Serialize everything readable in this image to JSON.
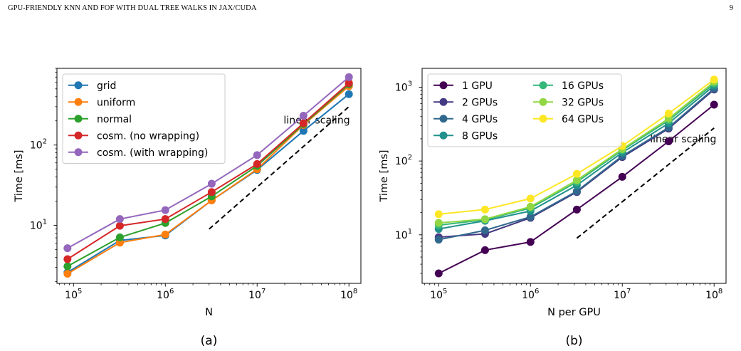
{
  "page": {
    "running_header": "GPU-FRIENDLY KNN AND FOF WITH DUAL TREE WALKS IN JAX/CUDA",
    "page_number": "9"
  },
  "chart_data": [
    {
      "type": "line",
      "panel_label": "(a)",
      "xlabel": "N",
      "ylabel": "Time [ms]",
      "xscale": "log",
      "yscale": "log",
      "xlim": [
        66000,
        135000000
      ],
      "ylim": [
        1.9,
        900
      ],
      "xticks": [
        100000,
        1000000,
        10000000,
        100000000
      ],
      "xtick_labels": [
        {
          "base": "10",
          "exp": "5"
        },
        {
          "base": "10",
          "exp": "6"
        },
        {
          "base": "10",
          "exp": "7"
        },
        {
          "base": "10",
          "exp": "8"
        }
      ],
      "yticks": [
        10,
        100
      ],
      "ytick_labels": [
        {
          "base": "10",
          "exp": "1"
        },
        {
          "base": "10",
          "exp": "2"
        }
      ],
      "legend_position": "upper-left",
      "legend_columns": 1,
      "grid": false,
      "x": [
        86000,
        320000,
        1000000,
        3200000,
        10000000,
        32000000,
        100000000
      ],
      "series": [
        {
          "name": "grid",
          "color": "#1f77b4",
          "values": [
            2.6,
            6.5,
            7.5,
            20.5,
            49,
            150,
            430
          ]
        },
        {
          "name": "uniform",
          "color": "#ff7f0e",
          "values": [
            2.5,
            6.1,
            7.7,
            20.5,
            50,
            178,
            540
          ]
        },
        {
          "name": "normal",
          "color": "#2ca02c",
          "values": [
            3.1,
            7.1,
            10.7,
            23,
            55,
            182,
            570
          ]
        },
        {
          "name": "cosm. (no wrapping)",
          "color": "#d62728",
          "values": [
            3.8,
            9.9,
            12,
            26,
            58,
            187,
            590
          ]
        },
        {
          "name": "cosm. (with wrapping)",
          "color": "#9467bd",
          "values": [
            5.2,
            12,
            15.5,
            33,
            75,
            232,
            700
          ]
        }
      ],
      "reference_line": {
        "label": "linear scaling",
        "x": [
          3000000,
          100000000
        ],
        "y": [
          9,
          300
        ],
        "style": "dashed"
      }
    },
    {
      "type": "line",
      "panel_label": "(b)",
      "xlabel": "N per GPU",
      "ylabel": "Time [ms]",
      "xscale": "log",
      "yscale": "log",
      "xlim": [
        66000,
        135000000
      ],
      "ylim": [
        2.2,
        1800
      ],
      "xticks": [
        100000,
        1000000,
        10000000,
        100000000
      ],
      "xtick_labels": [
        {
          "base": "10",
          "exp": "5"
        },
        {
          "base": "10",
          "exp": "6"
        },
        {
          "base": "10",
          "exp": "7"
        },
        {
          "base": "10",
          "exp": "8"
        }
      ],
      "yticks": [
        10,
        100,
        1000
      ],
      "ytick_labels": [
        {
          "base": "10",
          "exp": "1"
        },
        {
          "base": "10",
          "exp": "2"
        },
        {
          "base": "10",
          "exp": "3"
        }
      ],
      "legend_position": "upper-left",
      "legend_columns": 2,
      "grid": false,
      "x": [
        100000,
        320000,
        1000000,
        3200000,
        10000000,
        32000000,
        100000000
      ],
      "series": [
        {
          "name": "1 GPU",
          "color": "#440154",
          "values": [
            3,
            6.2,
            8,
            22,
            61,
            185,
            580
          ]
        },
        {
          "name": "2 GPUs",
          "color": "#443983",
          "values": [
            9.3,
            10.3,
            17,
            38,
            113,
            275,
            930
          ]
        },
        {
          "name": "4 GPUs",
          "color": "#31688e",
          "values": [
            8.6,
            11.5,
            17.5,
            39,
            117,
            285,
            960
          ]
        },
        {
          "name": "8 GPUs",
          "color": "#21918c",
          "values": [
            12,
            15.5,
            21,
            47,
            130,
            325,
            1050
          ]
        },
        {
          "name": "16 GPUs",
          "color": "#35b779",
          "values": [
            13.5,
            16,
            23,
            52,
            140,
            355,
            1120
          ]
        },
        {
          "name": "32 GPUs",
          "color": "#90d743",
          "values": [
            14.5,
            16.3,
            24,
            55,
            145,
            375,
            1180
          ]
        },
        {
          "name": "64 GPUs",
          "color": "#fde725",
          "values": [
            19,
            22,
            31,
            67,
            160,
            440,
            1270
          ]
        }
      ],
      "reference_line": {
        "label": "linear scaling",
        "x": [
          3200000,
          100000000
        ],
        "y": [
          9,
          280
        ],
        "style": "dashed"
      }
    }
  ]
}
